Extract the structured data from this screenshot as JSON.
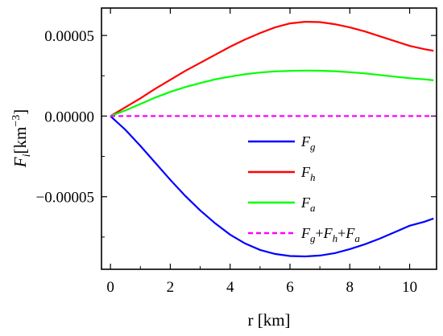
{
  "chart_data": {
    "type": "line",
    "xlabel": "r [km]",
    "ylabel": "F_i[km^-3]",
    "xlim": [
      -0.3,
      10.9
    ],
    "ylim": [
      -9.5e-05,
      6.7e-05
    ],
    "xticks": [
      0,
      2,
      4,
      6,
      8,
      10
    ],
    "xtick_labels": [
      "0",
      "2",
      "4",
      "6",
      "8",
      "10"
    ],
    "yticks": [
      -5e-05,
      0,
      5e-05
    ],
    "ytick_labels": [
      "−0.00005",
      "0.00000",
      "0.00005"
    ],
    "grid": false,
    "legend_position": "center-right",
    "x": [
      0,
      0.5,
      1,
      1.5,
      2,
      2.5,
      3,
      3.5,
      4,
      4.5,
      5,
      5.5,
      6,
      6.5,
      7,
      7.5,
      8,
      8.5,
      9,
      9.5,
      10,
      10.5,
      10.8
    ],
    "series": [
      {
        "name": "F_g",
        "color": "#0000ff",
        "dash": "solid",
        "values": [
          0,
          -8.5e-06,
          -1.85e-05,
          -2.9e-05,
          -3.95e-05,
          -4.95e-05,
          -5.85e-05,
          -6.65e-05,
          -7.35e-05,
          -7.9e-05,
          -8.3e-05,
          -8.55e-05,
          -8.68e-05,
          -8.7e-05,
          -8.65e-05,
          -8.5e-05,
          -8.25e-05,
          -7.95e-05,
          -7.6e-05,
          -7.2e-05,
          -6.8e-05,
          -6.55e-05,
          -6.35e-05
        ]
      },
      {
        "name": "F_h",
        "color": "#ff0000",
        "dash": "solid",
        "values": [
          0,
          5.5e-06,
          1.1e-05,
          1.7e-05,
          2.25e-05,
          2.8e-05,
          3.3e-05,
          3.8e-05,
          4.3e-05,
          4.75e-05,
          5.15e-05,
          5.5e-05,
          5.75e-05,
          5.85e-05,
          5.83e-05,
          5.7e-05,
          5.5e-05,
          5.25e-05,
          4.95e-05,
          4.65e-05,
          4.35e-05,
          4.15e-05,
          4.05e-05
        ]
      },
      {
        "name": "F_a",
        "color": "#00ff00",
        "dash": "solid",
        "values": [
          0,
          3.5e-06,
          7.5e-06,
          1.15e-05,
          1.5e-05,
          1.8e-05,
          2.05e-05,
          2.28e-05,
          2.45e-05,
          2.6e-05,
          2.7e-05,
          2.77e-05,
          2.8e-05,
          2.82e-05,
          2.81e-05,
          2.78e-05,
          2.72e-05,
          2.65e-05,
          2.55e-05,
          2.45e-05,
          2.35e-05,
          2.28e-05,
          2.22e-05
        ]
      },
      {
        "name": "F_g+F_h+F_a",
        "color": "#ff00ff",
        "dash": "dashed",
        "values": [
          0,
          0,
          0,
          0,
          0,
          0,
          0,
          0,
          0,
          0,
          0,
          0,
          0,
          0,
          0,
          0,
          0,
          0,
          0,
          0,
          0,
          0,
          0
        ]
      }
    ]
  }
}
